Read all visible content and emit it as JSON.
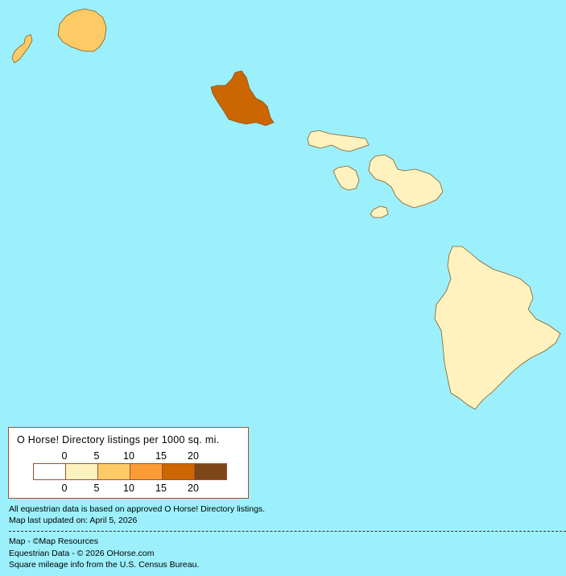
{
  "colors": {
    "ocean": "#9cf0fc",
    "bins": [
      "#ffffff",
      "#fff2bf",
      "#fdcb66",
      "#fb9b35",
      "#cc6600",
      "#7d4619"
    ]
  },
  "islands": [
    {
      "name": "Niihau",
      "bin": 2
    },
    {
      "name": "Kauai",
      "bin": 2
    },
    {
      "name": "Oahu",
      "bin": 4
    },
    {
      "name": "Molokai",
      "bin": 1
    },
    {
      "name": "Lanai",
      "bin": 1
    },
    {
      "name": "Maui",
      "bin": 1
    },
    {
      "name": "Kahoolawe",
      "bin": 1
    },
    {
      "name": "Hawaii",
      "bin": 1
    }
  ],
  "legend": {
    "title": "O Horse! Directory listings per 1000 sq. mi.",
    "top_ticks": [
      "0",
      "5",
      "10",
      "15",
      "20"
    ],
    "bottom_ticks": [
      "0",
      "5",
      "10",
      "15",
      "20"
    ]
  },
  "footer": {
    "line1": "All equestrian data is based on approved O Horse! Directory listings.",
    "line2": "Map last updated on: April 5, 2026",
    "credit1": "Map - ©Map Resources",
    "credit2": "Equestrian Data - © 2026 OHorse.com",
    "credit3": "Square mileage info from the U.S. Census Bureau."
  }
}
